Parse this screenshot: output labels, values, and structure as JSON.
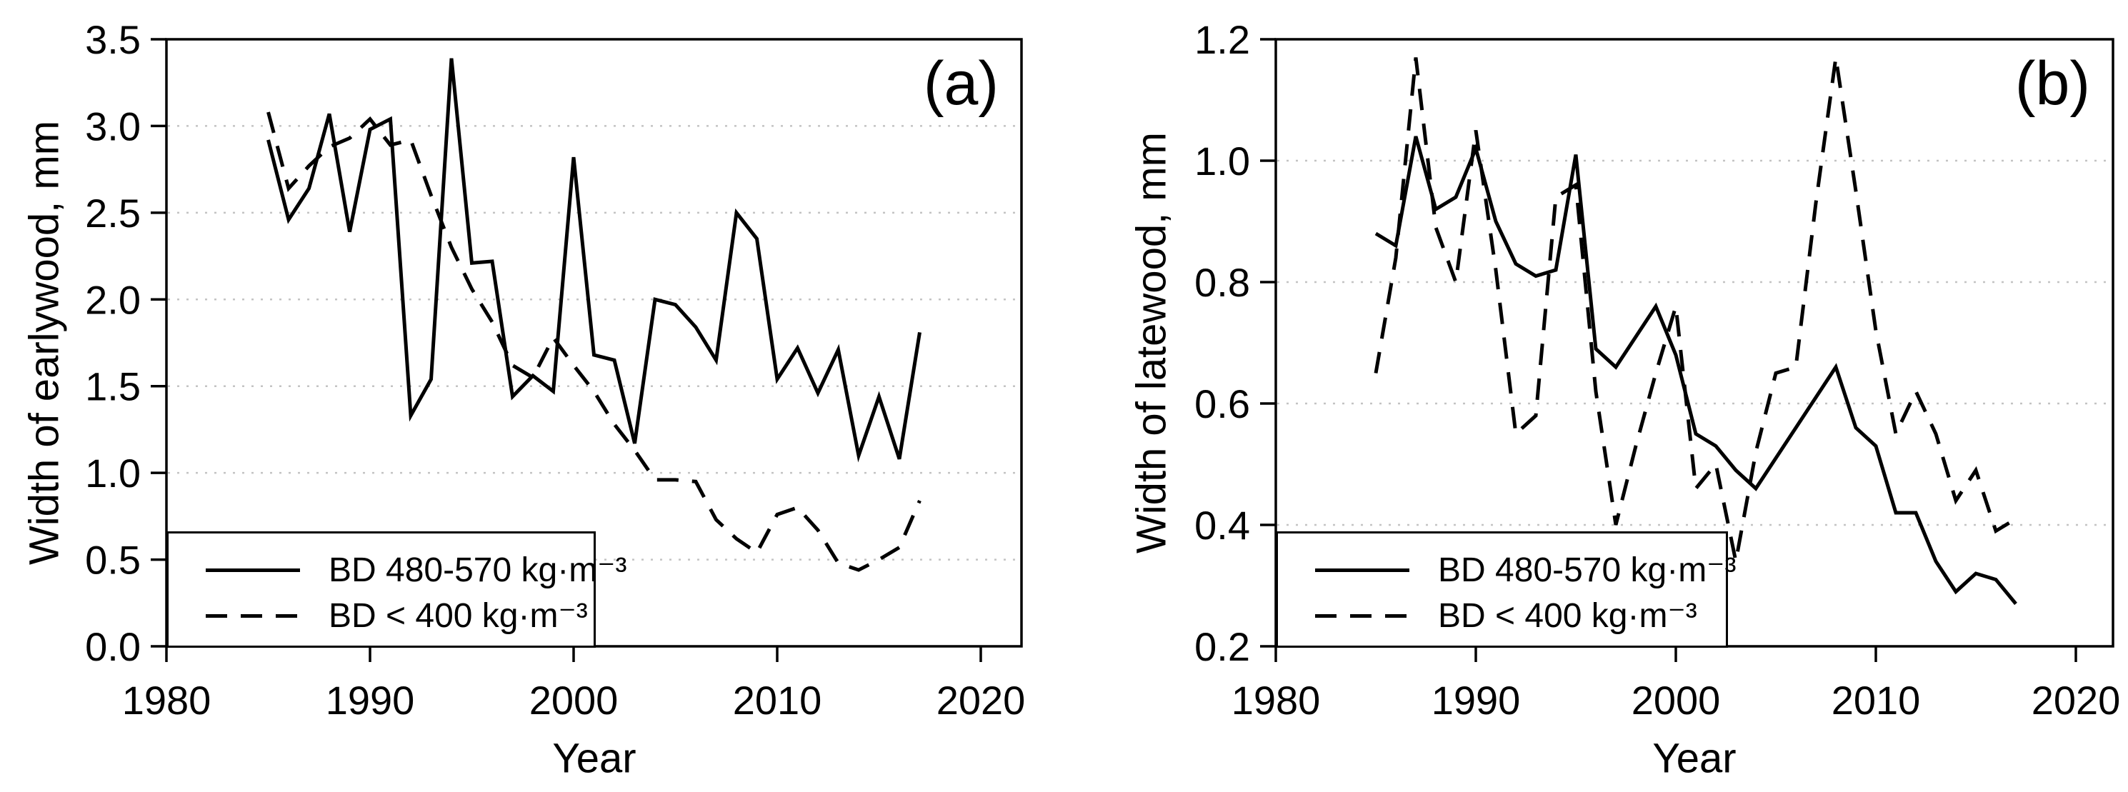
{
  "colors": {
    "line": "#000000",
    "grid": "#c3c3c3",
    "background": "#ffffff"
  },
  "chart_data": [
    {
      "type": "line",
      "panel_label": "(a)",
      "xlabel": "Year",
      "ylabel": "Width of earlywood, mm",
      "xlim": [
        1980,
        2022
      ],
      "ylim": [
        0.0,
        3.5
      ],
      "x_ticks": [
        1980,
        1990,
        2000,
        2010,
        2020
      ],
      "x_tick_labels": [
        "1980",
        "1990",
        "2000",
        "2010",
        "2020"
      ],
      "y_ticks": [
        3.5,
        3.0,
        2.5,
        2.0,
        1.5,
        1.0,
        0.5,
        0.0
      ],
      "y_tick_labels": [
        "3.5",
        "3.0",
        "2.5",
        "2.0",
        "1.5",
        "1.0",
        "0.5",
        "0.0"
      ],
      "grid_values": [
        3.0,
        2.5,
        2.0,
        1.5,
        1.0,
        0.5
      ],
      "grid": "dotted horizontal",
      "legend_position": "lower left",
      "x": [
        1985,
        1986,
        1987,
        1988,
        1989,
        1990,
        1991,
        1992,
        1993,
        1994,
        1995,
        1996,
        1997,
        1998,
        1999,
        2000,
        2001,
        2002,
        2003,
        2004,
        2005,
        2006,
        2007,
        2008,
        2009,
        2010,
        2011,
        2012,
        2013,
        2014,
        2015,
        2016,
        2017
      ],
      "series": [
        {
          "name": "BD 480-570 kg·m⁻³",
          "style": "solid",
          "values": [
            2.92,
            2.46,
            2.64,
            3.07,
            2.39,
            2.98,
            3.04,
            1.33,
            1.54,
            3.39,
            2.21,
            2.22,
            1.44,
            1.56,
            1.47,
            2.82,
            1.68,
            1.65,
            1.17,
            2.0,
            1.97,
            1.84,
            1.65,
            2.5,
            2.35,
            1.54,
            1.72,
            1.46,
            1.71,
            1.1,
            1.44,
            1.08,
            1.81
          ]
        },
        {
          "name": "BD < 400 kg·m⁻³",
          "style": "dashed",
          "values": [
            3.08,
            2.64,
            2.77,
            2.88,
            2.93,
            3.04,
            2.89,
            2.92,
            2.6,
            2.3,
            2.06,
            1.87,
            1.62,
            1.55,
            1.78,
            1.62,
            1.47,
            1.28,
            1.13,
            0.96,
            0.96,
            0.95,
            0.73,
            0.62,
            0.54,
            0.76,
            0.8,
            0.67,
            0.48,
            0.44,
            0.5,
            0.57,
            0.84
          ]
        }
      ]
    },
    {
      "type": "line",
      "panel_label": "(b)",
      "xlabel": "Year",
      "ylabel": "Width of latewood, mm",
      "xlim": [
        1980,
        2022
      ],
      "ylim": [
        0.2,
        1.2
      ],
      "x_ticks": [
        1980,
        1990,
        2000,
        2010,
        2020
      ],
      "x_tick_labels": [
        "1980",
        "1990",
        "2000",
        "2010",
        "2020"
      ],
      "y_ticks": [
        1.2,
        1.0,
        0.8,
        0.6,
        0.4,
        0.2
      ],
      "y_tick_labels": [
        "1.2",
        "1.0",
        "0.8",
        "0.6",
        "0.4",
        "0.2"
      ],
      "grid_values": [
        1.0,
        0.8,
        0.6,
        0.4
      ],
      "grid": "dotted horizontal",
      "legend_position": "lower left",
      "x": [
        1985,
        1986,
        1987,
        1988,
        1989,
        1990,
        1991,
        1992,
        1993,
        1994,
        1995,
        1996,
        1997,
        1998,
        1999,
        2000,
        2001,
        2002,
        2003,
        2004,
        2005,
        2006,
        2007,
        2008,
        2009,
        2010,
        2011,
        2012,
        2013,
        2014,
        2015,
        2016,
        2017
      ],
      "series": [
        {
          "name": "BD 480-570 kg·m⁻³",
          "style": "solid",
          "values": [
            0.88,
            0.86,
            1.04,
            0.92,
            0.94,
            1.02,
            0.9,
            0.83,
            0.81,
            0.82,
            1.01,
            0.69,
            0.66,
            0.71,
            0.76,
            0.68,
            0.55,
            0.53,
            0.49,
            0.46,
            0.51,
            0.56,
            0.61,
            0.66,
            0.56,
            0.53,
            0.42,
            0.42,
            0.34,
            0.29,
            0.32,
            0.31,
            0.27
          ]
        },
        {
          "name": "BD < 400 kg·m⁻³",
          "style": "dashed",
          "values": [
            0.65,
            0.84,
            1.17,
            0.89,
            0.8,
            1.05,
            0.82,
            0.55,
            0.58,
            0.94,
            0.96,
            0.62,
            0.4,
            0.53,
            0.65,
            0.76,
            0.46,
            0.5,
            0.34,
            0.52,
            0.65,
            0.66,
            0.93,
            1.17,
            0.95,
            0.72,
            0.55,
            0.62,
            0.55,
            0.44,
            0.49,
            0.39,
            0.41
          ]
        }
      ]
    }
  ]
}
